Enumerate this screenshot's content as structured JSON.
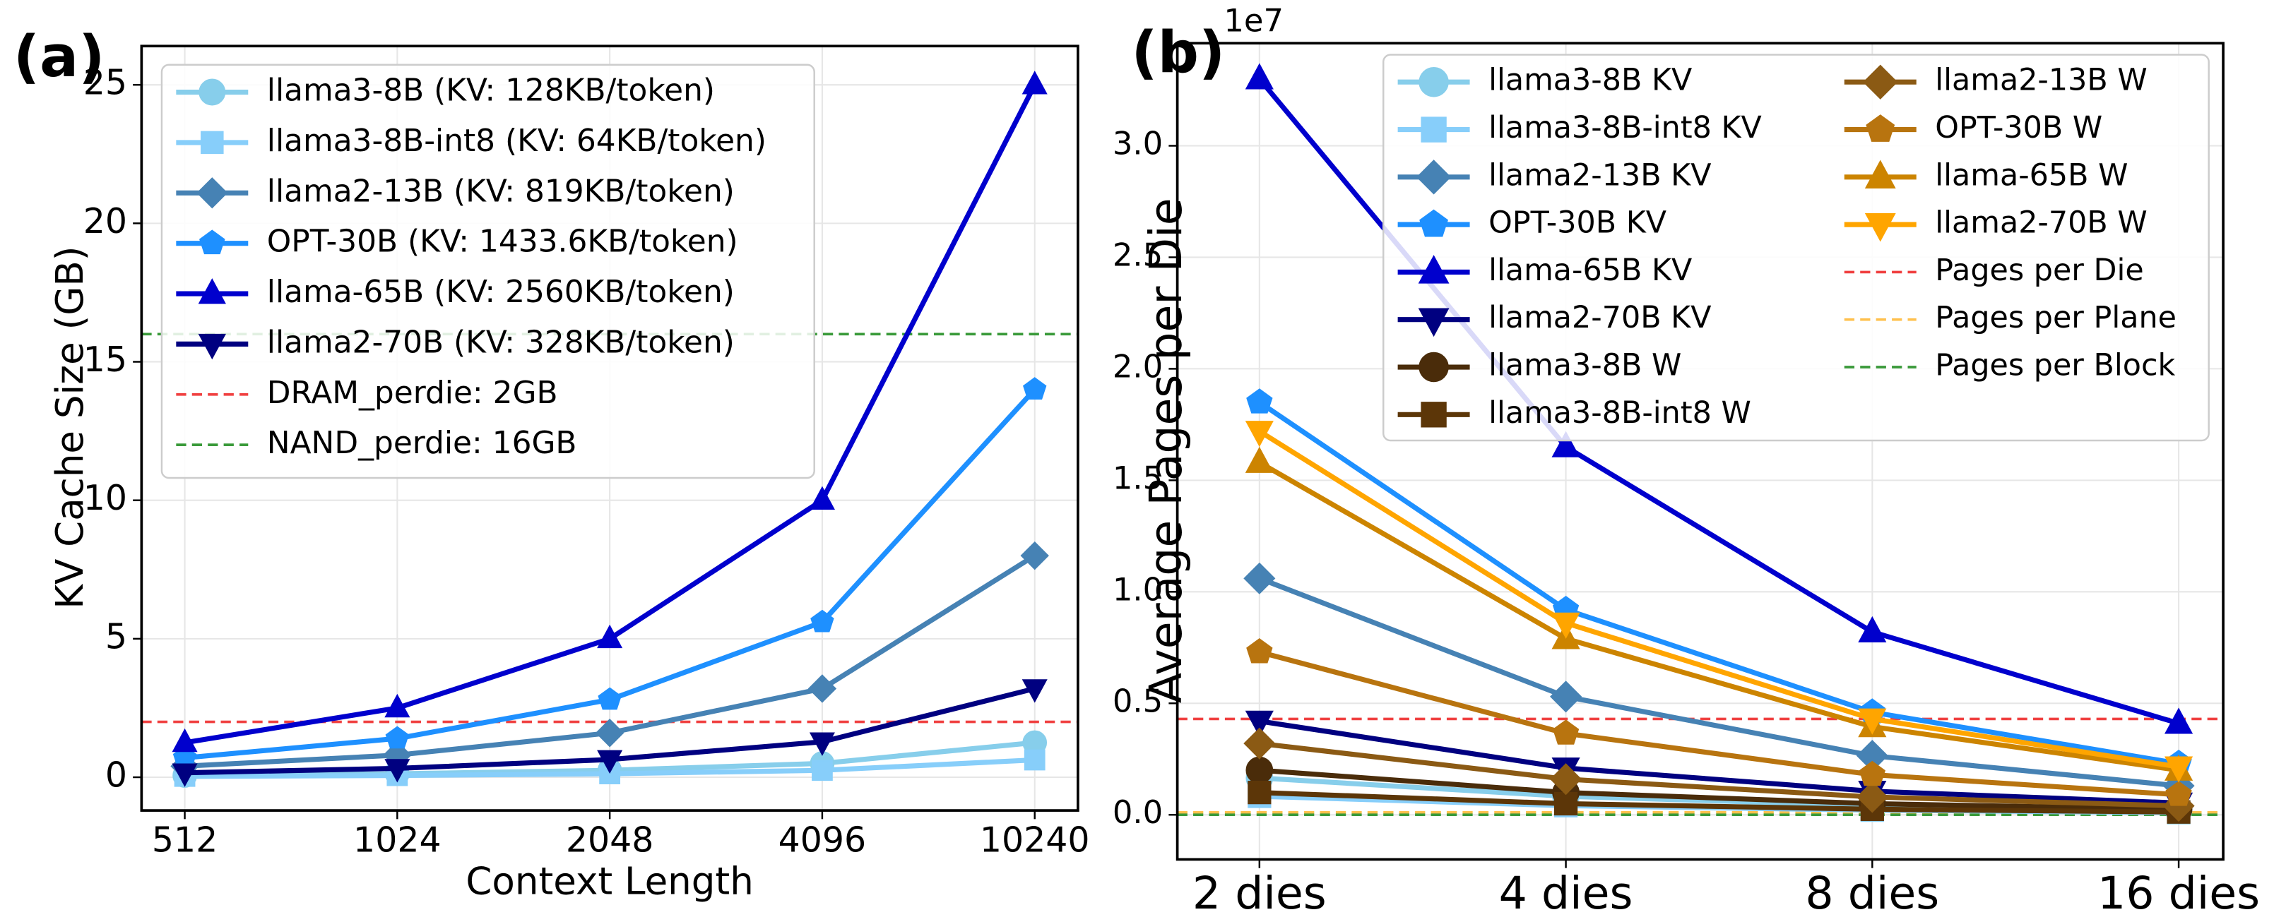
{
  "chart_data": [
    {
      "type": "line",
      "panel_label": "(a)",
      "xlabel": "Context Length",
      "ylabel": "KV Cache Size (GB)",
      "categories": [
        "512",
        "1024",
        "2048",
        "4096",
        "10240"
      ],
      "ylim": [
        -1.2,
        26.4
      ],
      "yticks": [
        0,
        5,
        10,
        15,
        20,
        25
      ],
      "grid": true,
      "legend": "upper left",
      "legend_columns": 1,
      "series": [
        {
          "name": "llama3-8B (KV: 128KB/token)",
          "color": "#87ceeb",
          "marker": "circle",
          "values": [
            0.0625,
            0.125,
            0.25,
            0.5,
            1.25
          ]
        },
        {
          "name": "llama3-8B-int8 (KV: 64KB/token)",
          "color": "#87cefa",
          "marker": "square",
          "values": [
            0.03125,
            0.0625,
            0.125,
            0.25,
            0.625
          ]
        },
        {
          "name": "llama2-13B (KV: 819KB/token)",
          "color": "#4682b4",
          "marker": "diamond",
          "values": [
            0.4,
            0.8,
            1.6,
            3.2,
            8
          ]
        },
        {
          "name": "OPT-30B (KV: 1433.6KB/token)",
          "color": "#1e90ff",
          "marker": "pentagon",
          "values": [
            0.7,
            1.4,
            2.8,
            5.6,
            14
          ]
        },
        {
          "name": "llama-65B (KV: 2560KB/token)",
          "color": "#0000cd",
          "marker": "triangle-up",
          "values": [
            1.25,
            2.5,
            5,
            10,
            25
          ]
        },
        {
          "name": "llama2-70B (KV: 328KB/token)",
          "color": "#000080",
          "marker": "triangle-down",
          "values": [
            0.16,
            0.32,
            0.64,
            1.28,
            3.2
          ]
        }
      ],
      "hlines": [
        {
          "name": "DRAM_perdie: 2GB",
          "color": "#f04040",
          "value": 2
        },
        {
          "name": "NAND_perdie: 16GB",
          "color": "#3a9a3a",
          "value": 16
        }
      ]
    },
    {
      "type": "line",
      "panel_label": "(b)",
      "ylabel": "Average Pages per Die",
      "offset_label": "1e7",
      "categories": [
        "2 dies",
        "4 dies",
        "8 dies",
        "16 dies"
      ],
      "ylim": [
        -0.2,
        3.46
      ],
      "yticks": [
        {
          "value": 0,
          "label": "0.0"
        },
        0.5,
        {
          "value": 1,
          "label": "1.0"
        },
        1.5,
        {
          "value": 2,
          "label": "2.0"
        },
        2.5,
        {
          "value": 3,
          "label": "3.0"
        }
      ],
      "grid": true,
      "legend": "upper center",
      "legend_columns": 2,
      "series": [
        {
          "name": "llama3-8B KV",
          "color": "#87ceeb",
          "marker": "circle",
          "values": [
            0.165,
            0.083,
            0.041,
            0.021
          ]
        },
        {
          "name": "llama3-8B-int8 KV",
          "color": "#87cefa",
          "marker": "square",
          "values": [
            0.083,
            0.041,
            0.021,
            0.01
          ]
        },
        {
          "name": "llama2-13B KV",
          "color": "#4682b4",
          "marker": "diamond",
          "values": [
            1.06,
            0.53,
            0.265,
            0.13
          ]
        },
        {
          "name": "OPT-30B KV",
          "color": "#1e90ff",
          "marker": "pentagon",
          "values": [
            1.85,
            0.92,
            0.46,
            0.23
          ]
        },
        {
          "name": "llama-65B KV",
          "color": "#0000cd",
          "marker": "triangle-up",
          "values": [
            3.3,
            1.65,
            0.82,
            0.41
          ]
        },
        {
          "name": "llama2-70B KV",
          "color": "#000080",
          "marker": "triangle-down",
          "values": [
            0.42,
            0.21,
            0.106,
            0.053
          ]
        },
        {
          "name": "llama3-8B W",
          "color": "#4a2c0a",
          "marker": "circle",
          "values": [
            0.2,
            0.1,
            0.05,
            0.025
          ]
        },
        {
          "name": "llama3-8B-int8 W",
          "color": "#5c3608",
          "marker": "square",
          "values": [
            0.1,
            0.05,
            0.025,
            0.0125
          ]
        },
        {
          "name": "llama2-13B W",
          "color": "#8b5a14",
          "marker": "diamond",
          "values": [
            0.32,
            0.16,
            0.08,
            0.04
          ]
        },
        {
          "name": "OPT-30B W",
          "color": "#b8740f",
          "marker": "pentagon",
          "values": [
            0.73,
            0.365,
            0.18,
            0.09
          ]
        },
        {
          "name": "llama-65B W",
          "color": "#cc8400",
          "marker": "triangle-up",
          "values": [
            1.58,
            0.79,
            0.395,
            0.2
          ]
        },
        {
          "name": "llama2-70B W",
          "color": "#ffa500",
          "marker": "triangle-down",
          "values": [
            1.72,
            0.86,
            0.43,
            0.215
          ]
        }
      ],
      "hlines": [
        {
          "name": "Pages per Die",
          "color": "#f04040",
          "value": 0.43
        },
        {
          "name": "Pages per Plane",
          "color": "#ffc04d",
          "value": 0.011
        },
        {
          "name": "Pages per Block",
          "color": "#3a9a3a",
          "value": 0.0003
        }
      ]
    }
  ]
}
